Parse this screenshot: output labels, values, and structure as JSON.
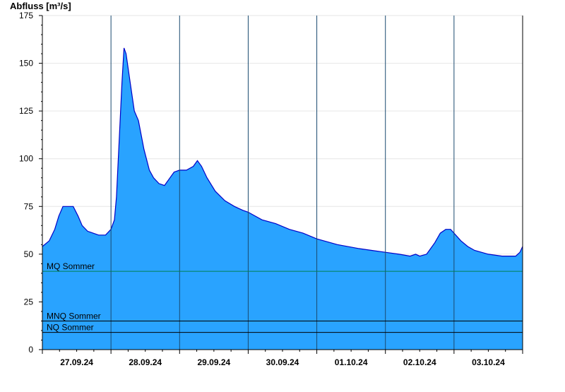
{
  "chart_data": {
    "type": "area",
    "ylabel": "Abfluss [m³/s]",
    "ylim": [
      0,
      175
    ],
    "yticks": [
      0,
      25,
      50,
      75,
      100,
      125,
      150,
      175
    ],
    "x_range_days": [
      0,
      7
    ],
    "x_date_labels": [
      "27.09.24",
      "28.09.24",
      "29.09.24",
      "30.09.24",
      "01.10.24",
      "02.10.24",
      "03.10.24"
    ],
    "grid": true,
    "colors": {
      "fill": "#29a3ff",
      "line": "#0000c8",
      "mq": "#008050",
      "ref": "#000000",
      "grid": "#e6e6e6"
    },
    "reference_lines": [
      {
        "label": "MQ Sommer",
        "value": 41
      },
      {
        "label": "MNQ Sommer",
        "value": 15
      },
      {
        "label": "NQ Sommer",
        "value": 9
      }
    ],
    "series": [
      {
        "points": [
          [
            0.0,
            54
          ],
          [
            0.1,
            57
          ],
          [
            0.18,
            63
          ],
          [
            0.24,
            70
          ],
          [
            0.3,
            75
          ],
          [
            0.45,
            75
          ],
          [
            0.52,
            70
          ],
          [
            0.58,
            65
          ],
          [
            0.66,
            62
          ],
          [
            0.82,
            60
          ],
          [
            0.92,
            60
          ],
          [
            1.0,
            63
          ],
          [
            1.05,
            68
          ],
          [
            1.08,
            80
          ],
          [
            1.12,
            110
          ],
          [
            1.16,
            140
          ],
          [
            1.19,
            158
          ],
          [
            1.22,
            155
          ],
          [
            1.28,
            140
          ],
          [
            1.34,
            125
          ],
          [
            1.4,
            120
          ],
          [
            1.48,
            105
          ],
          [
            1.56,
            94
          ],
          [
            1.62,
            90
          ],
          [
            1.7,
            87
          ],
          [
            1.78,
            86
          ],
          [
            1.86,
            90
          ],
          [
            1.92,
            93
          ],
          [
            2.0,
            94
          ],
          [
            2.1,
            94
          ],
          [
            2.2,
            96
          ],
          [
            2.26,
            99
          ],
          [
            2.32,
            96
          ],
          [
            2.4,
            90
          ],
          [
            2.52,
            83
          ],
          [
            2.66,
            78
          ],
          [
            2.8,
            75
          ],
          [
            2.92,
            73
          ],
          [
            3.0,
            72
          ],
          [
            3.2,
            68
          ],
          [
            3.4,
            66
          ],
          [
            3.6,
            63
          ],
          [
            3.8,
            61
          ],
          [
            4.0,
            58
          ],
          [
            4.3,
            55
          ],
          [
            4.6,
            53
          ],
          [
            4.8,
            52
          ],
          [
            5.0,
            51
          ],
          [
            5.2,
            50
          ],
          [
            5.36,
            49
          ],
          [
            5.44,
            50
          ],
          [
            5.5,
            49
          ],
          [
            5.6,
            50
          ],
          [
            5.64,
            52
          ],
          [
            5.72,
            56
          ],
          [
            5.8,
            61
          ],
          [
            5.88,
            63
          ],
          [
            5.95,
            63
          ],
          [
            6.0,
            61
          ],
          [
            6.1,
            57
          ],
          [
            6.2,
            54
          ],
          [
            6.3,
            52
          ],
          [
            6.5,
            50
          ],
          [
            6.7,
            49
          ],
          [
            6.9,
            49
          ],
          [
            6.96,
            51
          ],
          [
            7.0,
            54
          ]
        ]
      }
    ]
  }
}
